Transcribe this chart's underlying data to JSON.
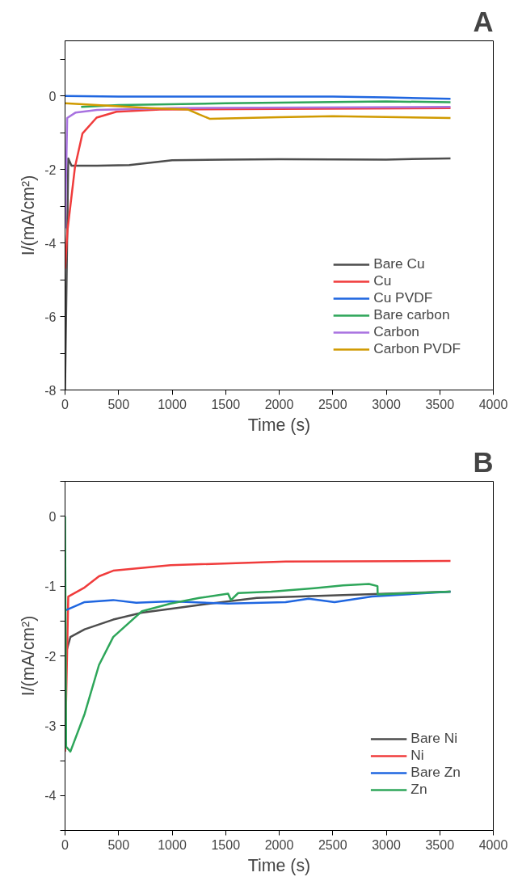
{
  "chart_data": [
    {
      "type": "line",
      "title": "A",
      "xlabel": "Time (s)",
      "ylabel": "I/(mA/cm²)",
      "xlim": [
        0,
        4000
      ],
      "ylim": [
        -8,
        1.5
      ],
      "xticks": [
        0,
        500,
        1000,
        1500,
        2000,
        2500,
        3000,
        3500,
        4000
      ],
      "yticks": [
        {
          "value": 1,
          "label": null
        },
        0,
        {
          "value": -1,
          "label": null
        },
        -2,
        {
          "value": -3,
          "label": null
        },
        -4,
        {
          "value": -5,
          "label": null
        },
        -6,
        {
          "value": -7,
          "label": null
        },
        -8
      ],
      "grid": false,
      "legend": "bottom right",
      "line_style": "solid",
      "series": [
        {
          "name": "Bare Cu",
          "color": "#4d4d4d",
          "x": [
            0,
            30,
            60,
            300,
            600,
            1000,
            1500,
            2000,
            3000,
            3600
          ],
          "values": [
            -8,
            -1.7,
            -1.9,
            -1.9,
            -1.88,
            -1.75,
            -1.73,
            -1.72,
            -1.73,
            -1.7
          ]
        },
        {
          "name": "Cu",
          "color": "#f03c3c",
          "x": [
            0,
            23,
            93,
            163,
            295,
            480,
            885,
            2000,
            3600
          ],
          "values": [
            -4.7,
            -3.65,
            -1.93,
            -1.02,
            -0.59,
            -0.43,
            -0.37,
            -0.35,
            -0.33
          ]
        },
        {
          "name": "Cu PVDF",
          "color": "#1f66e0",
          "x": [
            0,
            500,
            1500,
            2500,
            3000,
            3600
          ],
          "values": [
            0,
            -0.02,
            -0.02,
            -0.02,
            -0.04,
            -0.08
          ]
        },
        {
          "name": "Bare carbon",
          "color": "#2ea65a",
          "x": [
            150,
            500,
            1500,
            3000,
            3600
          ],
          "values": [
            -0.3,
            -0.25,
            -0.2,
            -0.15,
            -0.17
          ]
        },
        {
          "name": "Carbon",
          "color": "#a872e0",
          "x": [
            0,
            20,
            100,
            300,
            1000,
            3600
          ],
          "values": [
            -3.6,
            -0.6,
            -0.45,
            -0.38,
            -0.33,
            -0.3
          ]
        },
        {
          "name": "Carbon PVDF",
          "color": "#d09a00",
          "x": [
            0,
            300,
            800,
            1150,
            1250,
            1350,
            2000,
            2500,
            3600
          ],
          "values": [
            -0.2,
            -0.25,
            -0.33,
            -0.37,
            -0.5,
            -0.62,
            -0.58,
            -0.55,
            -0.6
          ]
        }
      ]
    },
    {
      "type": "line",
      "title": "B",
      "xlabel": "Time (s)",
      "ylabel": "I/(mA/cm²)",
      "xlim": [
        0,
        4000
      ],
      "ylim": [
        -4.5,
        0.5
      ],
      "xticks": [
        0,
        500,
        1000,
        1500,
        2000,
        2500,
        3000,
        3500,
        4000
      ],
      "yticks": [
        {
          "value": 0.5,
          "label": null
        },
        0,
        {
          "value": -0.5,
          "label": null
        },
        -1,
        {
          "value": -1.5,
          "label": null
        },
        -2,
        {
          "value": -2.5,
          "label": null
        },
        -3,
        {
          "value": -3.5,
          "label": null
        },
        -4,
        {
          "value": -4.5,
          "label": null
        }
      ],
      "grid": false,
      "legend": "bottom right",
      "line_style": "solid",
      "series": [
        {
          "name": "Bare Ni",
          "color": "#4d4d4d",
          "x": [
            0,
            50,
            183,
            450,
            718,
            1254,
            1791,
            2597,
            3600
          ],
          "values": [
            -2.0,
            -1.73,
            -1.62,
            -1.48,
            -1.38,
            -1.27,
            -1.17,
            -1.13,
            -1.08
          ]
        },
        {
          "name": "Ni",
          "color": "#f03c3c",
          "x": [
            0,
            30,
            183,
            317,
            450,
            986,
            2060,
            3600
          ],
          "values": [
            -3.37,
            -1.15,
            -1.02,
            -0.86,
            -0.78,
            -0.7,
            -0.65,
            -0.64
          ]
        },
        {
          "name": "Bare Zn",
          "color": "#1f66e0",
          "x": [
            0,
            183,
            450,
            665,
            986,
            1523,
            2060,
            2275,
            2517,
            2866,
            3600
          ],
          "values": [
            -1.35,
            -1.23,
            -1.2,
            -1.24,
            -1.22,
            -1.25,
            -1.23,
            -1.18,
            -1.23,
            -1.15,
            -1.08
          ]
        },
        {
          "name": "Zn",
          "color": "#2ea65a",
          "x": [
            0,
            10,
            50,
            183,
            317,
            450,
            718,
            986,
            1254,
            1523,
            1550,
            1617,
            1925,
            2329,
            2597,
            2838,
            2918,
            2920,
            3600
          ],
          "values": [
            0,
            -3.3,
            -3.37,
            -2.83,
            -2.13,
            -1.73,
            -1.36,
            -1.25,
            -1.17,
            -1.11,
            -1.2,
            -1.1,
            -1.08,
            -1.03,
            -0.99,
            -0.97,
            -1.0,
            -1.12,
            -1.08
          ]
        }
      ]
    }
  ]
}
